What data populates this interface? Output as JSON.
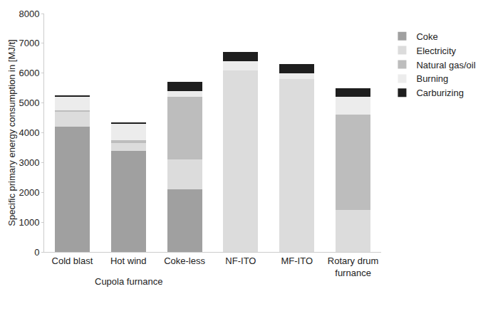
{
  "chart_data": {
    "type": "bar",
    "stacked": true,
    "grid": false,
    "legend": "right",
    "y_label": "Specific primary energy consumption in [MJ/t]",
    "categories": [
      "Cold blast",
      "Hot wind",
      "Coke-less",
      "NF-ITO",
      "MF-ITO",
      "Rotary drum furnance"
    ],
    "annotations": [
      {
        "text": "Cupola furnance",
        "categories": [
          "Cold blast",
          "Hot wind",
          "Coke-less"
        ]
      }
    ],
    "ylim": [
      0,
      8000
    ],
    "yticks": [
      0,
      1000,
      2000,
      3000,
      4000,
      5000,
      6000,
      7000,
      8000
    ],
    "series": [
      {
        "name": "Coke",
        "color": "#a0a0a0",
        "values": [
          4200,
          3400,
          2100,
          0,
          0,
          0
        ]
      },
      {
        "name": "Electricity",
        "color": "#dcdcdc",
        "values": [
          500,
          250,
          1000,
          6100,
          5800,
          1400
        ]
      },
      {
        "name": "Natural gas/oil",
        "color": "#bdbdbd",
        "values": [
          50,
          100,
          2100,
          0,
          0,
          3200
        ]
      },
      {
        "name": "Burning",
        "color": "#ececec",
        "values": [
          450,
          550,
          200,
          300,
          200,
          600
        ]
      },
      {
        "name": "Carburizing",
        "color": "#1e1e1e",
        "values": [
          50,
          50,
          300,
          300,
          300,
          300
        ]
      }
    ]
  }
}
